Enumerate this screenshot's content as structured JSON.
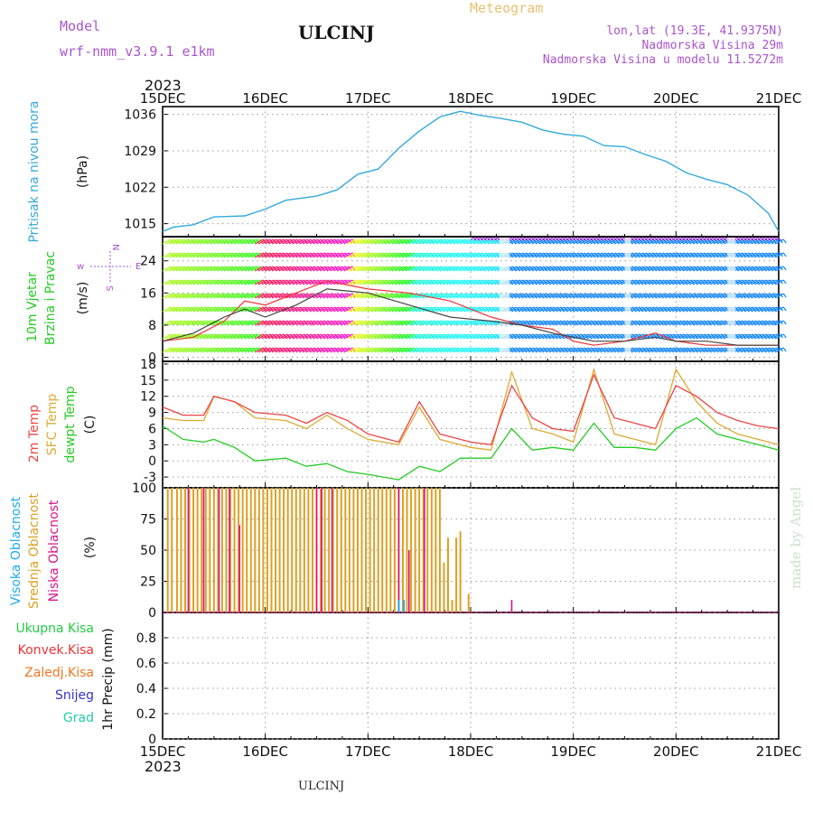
{
  "header": {
    "model_label": "Model",
    "model_name": "wrf-nmm_v3.9.1 e1km",
    "station": "ULCINJ",
    "meteogram_label": "Meteogram",
    "lonlat": "lon,lat (19.3E, 41.9375N)",
    "elevation": "Nadmorska Visina 29m",
    "model_elevation": "Nadmorska Visina u modelu 11.5272m",
    "year_top": "2023",
    "year_bottom": "2023",
    "footer_station": "ULCINJ",
    "watermark": "made by Angel"
  },
  "colors": {
    "pressure": "#33aadd",
    "temp2m": "#ee4444",
    "sfc": "#ddaa33",
    "dewpt": "#22cc22",
    "high_cloud": "#22aaee",
    "mid_cloud": "#dda022",
    "low_cloud": "#dd1188",
    "gust": "#ee3333",
    "wind": "#444444"
  },
  "time_axis": {
    "labels": [
      "15DEC",
      "16DEC",
      "17DEC",
      "18DEC",
      "19DEC",
      "20DEC",
      "21DEC"
    ]
  },
  "panels": {
    "pressure": {
      "title": "Pritisak na nivou mora",
      "unit": "(hPa)"
    },
    "wind": {
      "title1": "10m Vjetar",
      "title2": "Brzina i Pravac",
      "unit": "(m/s)",
      "compass_w": "w",
      "compass_n": "N",
      "compass_s": "S",
      "compass_e": "E"
    },
    "temp": {
      "label1": "2m Temp",
      "label2": "SFC Temp",
      "label3": "dewpt Temp",
      "unit": "(C)"
    },
    "cloud": {
      "label1": "Visoka Oblacnost",
      "label2": "Srednja Oblacnost",
      "label3": "Niska Oblacnost",
      "unit": "(%)"
    },
    "precip": {
      "label1": "Ukupna Kisa",
      "label2": "Konvek.Kisa",
      "label3": "Zaledj.Kisa",
      "label4": "Snijeg",
      "label5": "Grad",
      "unit": "1hr Precip (mm)"
    }
  },
  "chart_data": [
    {
      "type": "line",
      "name": "pressure",
      "x": [
        0,
        0.1,
        0.3,
        0.5,
        0.8,
        1.0,
        1.2,
        1.5,
        1.7,
        1.9,
        2.1,
        2.3,
        2.5,
        2.7,
        2.9,
        3.1,
        3.3,
        3.5,
        3.7,
        3.9,
        4.1,
        4.3,
        4.5,
        4.7,
        4.9,
        5.1,
        5.3,
        5.5,
        5.7,
        5.9,
        6.0
      ],
      "y": [
        1013.5,
        1014.3,
        1014.8,
        1016.3,
        1016.5,
        1017.8,
        1019.5,
        1020.3,
        1021.5,
        1024.5,
        1025.5,
        1029.5,
        1032.8,
        1035.5,
        1036.6,
        1035.8,
        1035.2,
        1034.5,
        1033.0,
        1032.2,
        1031.8,
        1030.0,
        1029.8,
        1028.3,
        1027.0,
        1024.8,
        1023.5,
        1022.5,
        1020.5,
        1017.0,
        1013.5
      ],
      "ylim": [
        1012.5,
        1037.5
      ],
      "yticks": [
        1015,
        1022,
        1029,
        1036
      ]
    },
    {
      "type": "line",
      "name": "wind",
      "x": [
        0,
        0.3,
        0.6,
        0.8,
        1.0,
        1.3,
        1.6,
        2.0,
        2.4,
        2.8,
        3.2,
        3.5,
        3.8,
        4.0,
        4.2,
        4.5,
        4.8,
        5.0,
        5.3,
        5.6,
        5.8,
        6.0
      ],
      "y": [
        4,
        6,
        10,
        12,
        10,
        13,
        17,
        16,
        13,
        10,
        9,
        8,
        6,
        5,
        4,
        4,
        5,
        4,
        4,
        3,
        3,
        3
      ],
      "gust_y": [
        4,
        5,
        9,
        14,
        13,
        16,
        19,
        17,
        16,
        14,
        10,
        8,
        7,
        4,
        3,
        4,
        6,
        4,
        3,
        3,
        3,
        3
      ],
      "ylim": [
        -1,
        30
      ],
      "yticks": [
        0,
        8,
        16,
        24
      ]
    },
    {
      "type": "line",
      "name": "temperature",
      "x": [
        0,
        0.2,
        0.4,
        0.5,
        0.7,
        0.9,
        1.2,
        1.4,
        1.6,
        1.8,
        2.0,
        2.3,
        2.5,
        2.7,
        2.9,
        3.0,
        3.2,
        3.4,
        3.6,
        3.8,
        4.0,
        4.2,
        4.4,
        4.6,
        4.8,
        5.0,
        5.2,
        5.4,
        5.6,
        5.8,
        6.0
      ],
      "temp2m": [
        10,
        8.5,
        8.5,
        12,
        11,
        9,
        8.5,
        7,
        9,
        7.5,
        5,
        3.5,
        11,
        5,
        4,
        3.5,
        3,
        14,
        8,
        6,
        5.5,
        16,
        8,
        7,
        6,
        14,
        12,
        9,
        7.5,
        6.5,
        6
      ],
      "sfc": [
        8,
        7.5,
        7.5,
        12,
        11,
        8,
        7.5,
        6,
        8.5,
        6,
        4,
        3,
        10,
        4,
        3,
        2.5,
        2,
        16.5,
        6,
        5,
        3.5,
        17,
        5,
        4,
        3,
        17,
        11,
        7,
        5,
        4,
        3
      ],
      "dewpt": [
        6.5,
        4,
        3.5,
        4,
        2.5,
        0,
        0.5,
        -1,
        -0.5,
        -2,
        -2.5,
        -3.5,
        -1,
        -2,
        0.5,
        0.5,
        0.5,
        6,
        2,
        2.5,
        2,
        7,
        2.5,
        2.5,
        2,
        6,
        8,
        5,
        4,
        3,
        2
      ],
      "ylim": [
        -5,
        18.5
      ],
      "yticks": [
        -3,
        0,
        3,
        6,
        9,
        12,
        15,
        18
      ]
    },
    {
      "type": "bar",
      "name": "cloud",
      "ylim": [
        0,
        100
      ],
      "yticks": [
        0,
        25,
        50,
        75,
        100
      ],
      "mid_x": [
        0.05,
        0.09,
        0.14,
        0.18,
        0.22,
        0.26,
        0.3,
        0.34,
        0.38,
        0.42,
        0.46,
        0.5,
        0.54,
        0.58,
        0.62,
        0.66,
        0.7,
        0.74,
        0.78,
        0.82,
        0.86,
        0.9,
        0.94,
        0.98,
        1.02,
        1.06,
        1.1,
        1.14,
        1.18,
        1.22,
        1.26,
        1.3,
        1.34,
        1.38,
        1.42,
        1.46,
        1.5,
        1.54,
        1.58,
        1.62,
        1.66,
        1.7,
        1.74,
        1.78,
        1.82,
        1.86,
        1.9,
        1.94,
        1.98,
        2.02,
        2.06,
        2.1,
        2.14,
        2.18,
        2.22,
        2.26,
        2.3,
        2.34,
        2.38,
        2.42,
        2.46,
        2.5,
        2.54,
        2.58,
        2.62,
        2.66,
        2.7,
        2.74,
        2.78,
        2.82,
        2.86,
        2.9,
        2.94,
        2.98
      ],
      "mid_v": [
        100,
        100,
        100,
        100,
        100,
        100,
        100,
        100,
        100,
        100,
        100,
        100,
        100,
        100,
        100,
        100,
        100,
        100,
        100,
        100,
        100,
        100,
        100,
        100,
        100,
        100,
        100,
        100,
        100,
        100,
        100,
        100,
        100,
        100,
        100,
        100,
        100,
        100,
        100,
        100,
        100,
        100,
        100,
        100,
        100,
        100,
        100,
        100,
        100,
        100,
        100,
        100,
        100,
        100,
        100,
        100,
        100,
        100,
        100,
        100,
        100,
        100,
        100,
        100,
        100,
        100,
        100,
        40,
        60,
        10,
        60,
        65,
        0,
        15
      ],
      "low_x": [
        0.25,
        0.4,
        0.55,
        0.65,
        0.75,
        1.5,
        1.55,
        1.65,
        2.3,
        2.4,
        2.55,
        3.4
      ],
      "low_v": [
        100,
        100,
        100,
        100,
        70,
        100,
        100,
        100,
        100,
        50,
        100,
        10
      ],
      "high_x": [
        2.3,
        2.35
      ],
      "high_v": [
        10,
        10
      ]
    },
    {
      "type": "bar",
      "name": "precip",
      "ylim": [
        0,
        1.0
      ],
      "yticks": [
        0,
        0.2,
        0.4,
        0.6,
        0.8
      ],
      "values": []
    }
  ]
}
